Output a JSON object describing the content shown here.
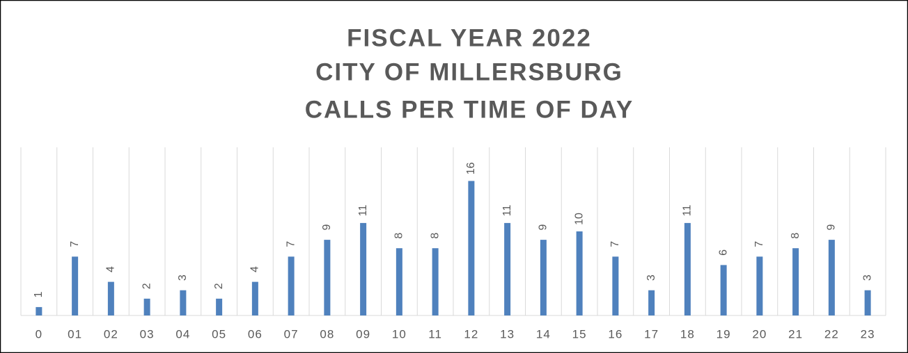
{
  "chart_data": {
    "type": "bar",
    "title": [
      "FISCAL YEAR 2022",
      "CITY OF MILLERSBURG",
      "CALLS PER TIME OF DAY"
    ],
    "categories": [
      "0",
      "01",
      "02",
      "03",
      "04",
      "05",
      "06",
      "07",
      "08",
      "09",
      "10",
      "11",
      "12",
      "13",
      "14",
      "15",
      "16",
      "17",
      "18",
      "19",
      "20",
      "21",
      "22",
      "23"
    ],
    "values": [
      1,
      7,
      4,
      2,
      3,
      2,
      4,
      7,
      9,
      11,
      8,
      8,
      16,
      11,
      9,
      10,
      7,
      3,
      11,
      6,
      7,
      8,
      9,
      3
    ],
    "color": "#4f81bd",
    "ylim": [
      0,
      20
    ],
    "data_labels": true
  }
}
